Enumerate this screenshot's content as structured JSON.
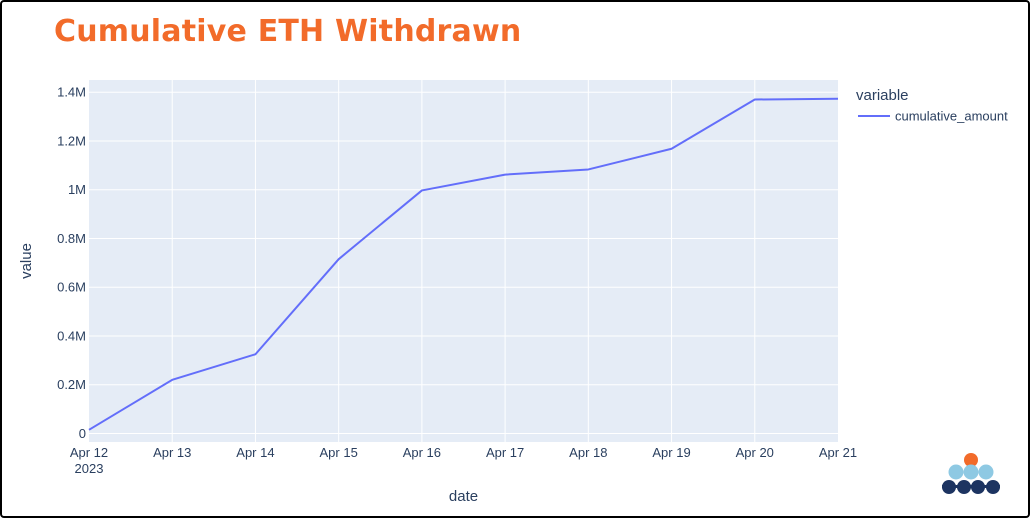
{
  "chart_data": {
    "type": "line",
    "title": "Cumulative ETH Withdrawn",
    "xlabel": "date",
    "ylabel": "value",
    "x": [
      "Apr 12 2023",
      "Apr 13",
      "Apr 14",
      "Apr 15",
      "Apr 16",
      "Apr 17",
      "Apr 18",
      "Apr 19",
      "Apr 20",
      "Apr 21"
    ],
    "x_tick_labels": [
      {
        "line1": "Apr 12",
        "line2": "2023"
      },
      {
        "line1": "Apr 13",
        "line2": ""
      },
      {
        "line1": "Apr 14",
        "line2": ""
      },
      {
        "line1": "Apr 15",
        "line2": ""
      },
      {
        "line1": "Apr 16",
        "line2": ""
      },
      {
        "line1": "Apr 17",
        "line2": ""
      },
      {
        "line1": "Apr 18",
        "line2": ""
      },
      {
        "line1": "Apr 19",
        "line2": ""
      },
      {
        "line1": "Apr 20",
        "line2": ""
      },
      {
        "line1": "Apr 21",
        "line2": ""
      }
    ],
    "y_ticks": [
      0,
      200000,
      400000,
      600000,
      800000,
      1000000,
      1200000,
      1400000
    ],
    "y_tick_labels": [
      "0",
      "0.2M",
      "0.4M",
      "0.6M",
      "0.8M",
      "1M",
      "1.2M",
      "1.4M"
    ],
    "ylim": [
      -35000,
      1450000
    ],
    "grid": true,
    "legend": {
      "title": "variable",
      "placement": "right"
    },
    "series": [
      {
        "name": "cumulative_amount",
        "color": "#636efa",
        "values": [
          15000,
          220000,
          325000,
          715000,
          997000,
          1062000,
          1083000,
          1168000,
          1370000,
          1373000
        ]
      }
    ]
  },
  "colors": {
    "title": "#f26b2a",
    "plot_background": "#e5ecf6",
    "grid": "#ffffff",
    "text": "#2a3f5f",
    "logo_orange": "#f26b2a",
    "logo_light_blue": "#8ec9e3",
    "logo_navy": "#1d3461"
  },
  "logo": {
    "icon": "stacked-dots-logo-icon"
  }
}
